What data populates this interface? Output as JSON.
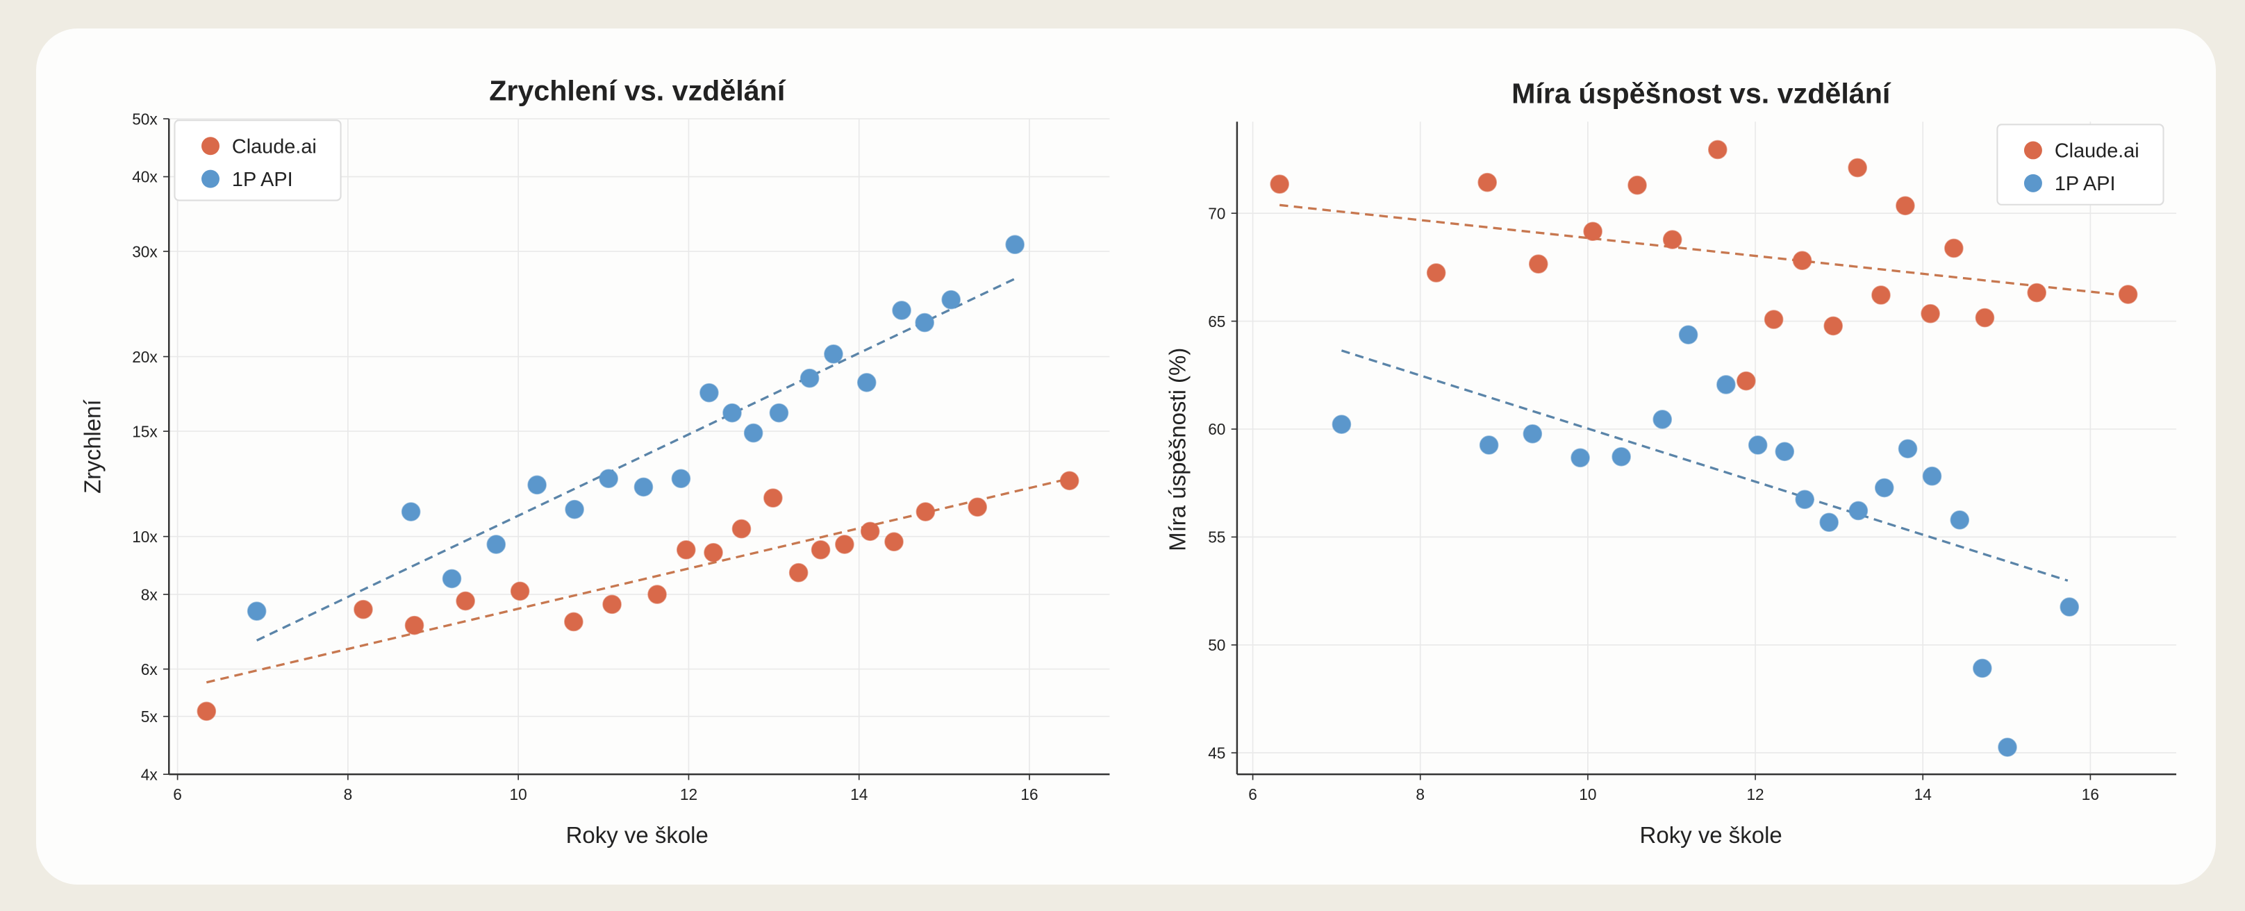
{
  "colors": {
    "background": "#efece3",
    "card": "#fdfdfc",
    "claude": "#d9694a",
    "api": "#5b97cc",
    "claude_trend": "#c7774f",
    "api_trend": "#5a84a8"
  },
  "chart_data": [
    {
      "type": "scatter",
      "title": "Zrychlení vs. vzdělání",
      "xlabel": "Roky ve škole",
      "ylabel": "Zrychlení",
      "xlim": [
        5.9,
        17.1
      ],
      "ylim": [
        4,
        50
      ],
      "yscale": "log",
      "xticks": [
        6,
        8,
        10,
        12,
        14,
        16
      ],
      "yticks": [
        4,
        5,
        6,
        8,
        10,
        15,
        20,
        30,
        40,
        50
      ],
      "ytick_labels": [
        "4x",
        "5x",
        "6x",
        "8x",
        "10x",
        "15x",
        "20x",
        "30x",
        "40x",
        "50x"
      ],
      "grid": true,
      "legend": "top-left",
      "series": [
        {
          "name": "Claude.ai",
          "color": "#d9694a",
          "x": [
            6.34,
            8.18,
            8.78,
            9.38,
            10.02,
            10.65,
            11.1,
            11.63,
            11.97,
            12.29,
            12.62,
            12.99,
            13.29,
            13.55,
            13.83,
            14.13,
            14.41,
            14.78,
            15.39,
            16.47
          ],
          "y": [
            5.1,
            7.55,
            7.1,
            7.8,
            8.1,
            7.2,
            7.7,
            8.0,
            9.5,
            9.4,
            10.3,
            11.6,
            8.7,
            9.5,
            9.7,
            10.2,
            9.8,
            11.0,
            11.2,
            12.4
          ],
          "trend": {
            "x": [
              6.34,
              16.47
            ],
            "y": [
              5.7,
              12.5
            ]
          }
        },
        {
          "name": "1P API",
          "color": "#5b97cc",
          "x": [
            6.93,
            8.74,
            9.22,
            9.74,
            10.22,
            10.66,
            11.06,
            11.47,
            11.91,
            12.24,
            12.51,
            12.76,
            13.06,
            13.42,
            13.7,
            14.09,
            14.5,
            14.77,
            15.08,
            15.83
          ],
          "y": [
            7.5,
            11.0,
            8.5,
            9.7,
            12.2,
            11.1,
            12.5,
            12.1,
            12.5,
            17.4,
            16.1,
            14.9,
            16.1,
            18.4,
            20.2,
            18.1,
            23.9,
            22.8,
            24.9,
            30.8
          ],
          "trend": {
            "x": [
              6.93,
              15.83
            ],
            "y": [
              6.7,
              27.0
            ]
          }
        }
      ]
    },
    {
      "type": "scatter",
      "title": "Míra úspěšnost vs. vzdělání",
      "xlabel": "Roky ve škole",
      "ylabel": "Míra úspěšnosti (%)",
      "xlim": [
        5.8,
        17.0
      ],
      "ylim": [
        44,
        74.3
      ],
      "yscale": "linear",
      "xticks": [
        6,
        8,
        10,
        12,
        14,
        16
      ],
      "yticks": [
        45,
        50,
        55,
        60,
        65,
        70
      ],
      "grid": true,
      "legend": "top-right",
      "series": [
        {
          "name": "Claude.ai",
          "color": "#d9694a",
          "x": [
            6.32,
            8.19,
            8.8,
            9.41,
            10.06,
            10.59,
            11.01,
            11.55,
            11.89,
            12.22,
            12.56,
            12.93,
            13.22,
            13.5,
            13.79,
            14.09,
            14.37,
            14.74,
            15.36,
            16.45
          ],
          "y": [
            71.35,
            67.24,
            71.43,
            67.65,
            69.16,
            71.3,
            68.78,
            72.95,
            62.23,
            65.08,
            67.81,
            64.78,
            72.11,
            66.21,
            70.35,
            65.35,
            68.38,
            65.16,
            66.32,
            66.24
          ],
          "trend": {
            "x": [
              6.32,
              16.45
            ],
            "y": [
              70.38,
              66.18
            ]
          }
        },
        {
          "name": "1P API",
          "color": "#5b97cc",
          "x": [
            7.06,
            8.82,
            9.34,
            9.91,
            10.4,
            10.89,
            11.2,
            11.65,
            12.03,
            12.35,
            12.59,
            12.88,
            13.23,
            13.54,
            13.82,
            14.11,
            14.44,
            14.71,
            15.01,
            15.75
          ],
          "y": [
            60.22,
            59.26,
            59.78,
            58.67,
            58.72,
            60.45,
            64.37,
            62.06,
            59.26,
            58.96,
            56.74,
            55.68,
            56.22,
            57.28,
            59.09,
            57.82,
            55.79,
            48.92,
            45.26,
            51.76
          ],
          "trend": {
            "x": [
              7.06,
              15.73
            ],
            "y": [
              63.64,
              52.98
            ]
          }
        }
      ]
    }
  ]
}
